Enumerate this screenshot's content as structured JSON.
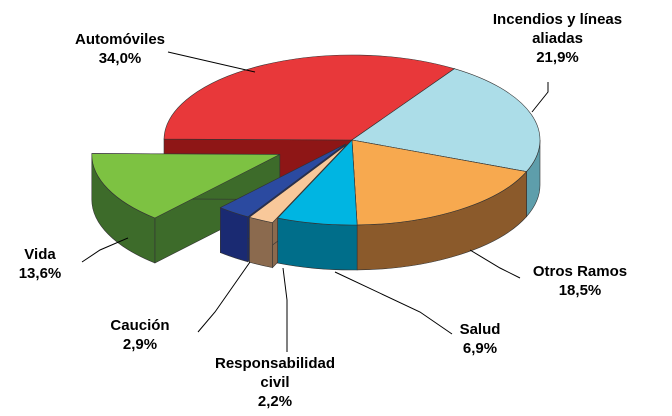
{
  "chart_data": {
    "type": "pie",
    "categories": [
      "Automóviles",
      "Incendios y líneas aliadas",
      "Otros Ramos",
      "Salud",
      "Responsabilidad civil",
      "Caución",
      "Vida"
    ],
    "values": [
      34.0,
      21.9,
      18.5,
      6.9,
      2.2,
      2.9,
      13.6
    ],
    "value_labels": [
      "34,0%",
      "21,9%",
      "18,5%",
      "6,9%",
      "2,2%",
      "2,9%",
      "13,6%"
    ],
    "colors": [
      "#e8383a",
      "#acdde8",
      "#f7a94f",
      "#00b5e2",
      "#f8c89a",
      "#2b4aa0",
      "#7dc242"
    ],
    "side_colors": [
      "#8e1616",
      "#5e9eab",
      "#8b5a2b",
      "#006e8a",
      "#8b6a4e",
      "#1a2a72",
      "#3d6b2a"
    ]
  }
}
